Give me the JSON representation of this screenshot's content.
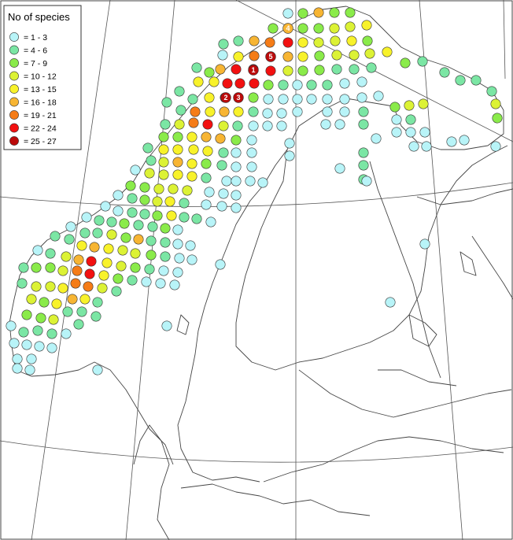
{
  "legend": {
    "title": "No of species",
    "classes": [
      {
        "range": "=   1  -  3",
        "color": "#b8f4f8"
      },
      {
        "range": "=   4  -  6",
        "color": "#7be6a4"
      },
      {
        "range": "=   7  -  9",
        "color": "#8aeb4a"
      },
      {
        "range": "=  10  - 12",
        "color": "#dcf235"
      },
      {
        "range": "=  13  - 15",
        "color": "#f8f22a"
      },
      {
        "range": "=  16  - 18",
        "color": "#f7b533"
      },
      {
        "range": "=  19  - 21",
        "color": "#f57c17"
      },
      {
        "range": "=  22  - 24",
        "color": "#f21010"
      },
      {
        "range": "=  25  - 27",
        "color": "#bb0a0a"
      }
    ]
  },
  "numbered_sites": [
    {
      "label": "1",
      "class": 8
    },
    {
      "label": "2",
      "class": 8
    },
    {
      "label": "3",
      "class": 8
    },
    {
      "label": "4",
      "class": 5
    },
    {
      "label": "5",
      "class": 8
    }
  ],
  "cell_class_counts": [
    null,
    null,
    null,
    null,
    null,
    null,
    null,
    null,
    null
  ]
}
